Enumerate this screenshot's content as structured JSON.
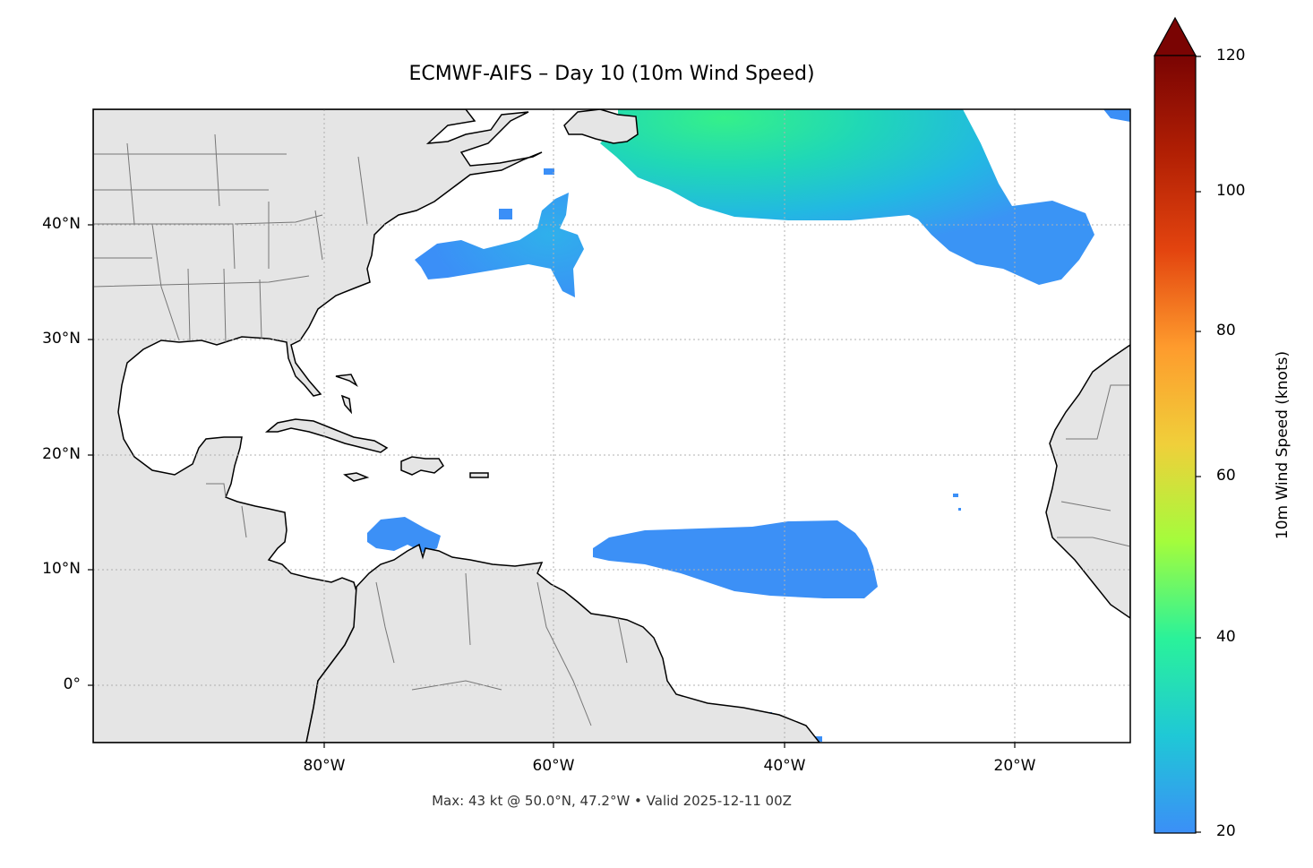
{
  "title": "ECMWF-AIFS – Day 10 (10m Wind Speed)",
  "footer": "Max: 43 kt @ 50.0°N, 47.2°W • Valid 2025-12-11 00Z",
  "map": {
    "extent_lon": [
      -100,
      -10
    ],
    "extent_lat": [
      -5,
      50
    ],
    "lat_ticks": [
      "40°N",
      "30°N",
      "20°N",
      "10°N",
      "0°"
    ],
    "lon_ticks": [
      "80°W",
      "60°W",
      "40°W",
      "20°W"
    ],
    "land_color": "#e5e5e5",
    "coast_color": "#000000",
    "border_color": "#777777",
    "gridlines": true
  },
  "colorbar": {
    "label": "10m Wind Speed (knots)",
    "ticks": [
      "120",
      "100",
      "80",
      "60",
      "40",
      "20"
    ],
    "range": [
      20,
      120
    ],
    "extend": "max",
    "colormap": "turbo",
    "stops": [
      "#3b8ff7",
      "#1fc8d6",
      "#2af29a",
      "#a4fc3c",
      "#f0cf3a",
      "#fe9b2d",
      "#e3440f",
      "#b11f04",
      "#7a0403"
    ]
  },
  "wind_areas": [
    {
      "name": "north atlantic jet",
      "value_kt": "30-43"
    },
    {
      "name": "western atlantic patch",
      "value_kt": "~25"
    },
    {
      "name": "tropical trades",
      "value_kt": "~20"
    },
    {
      "name": "caribbean jet",
      "value_kt": "~22"
    }
  ]
}
